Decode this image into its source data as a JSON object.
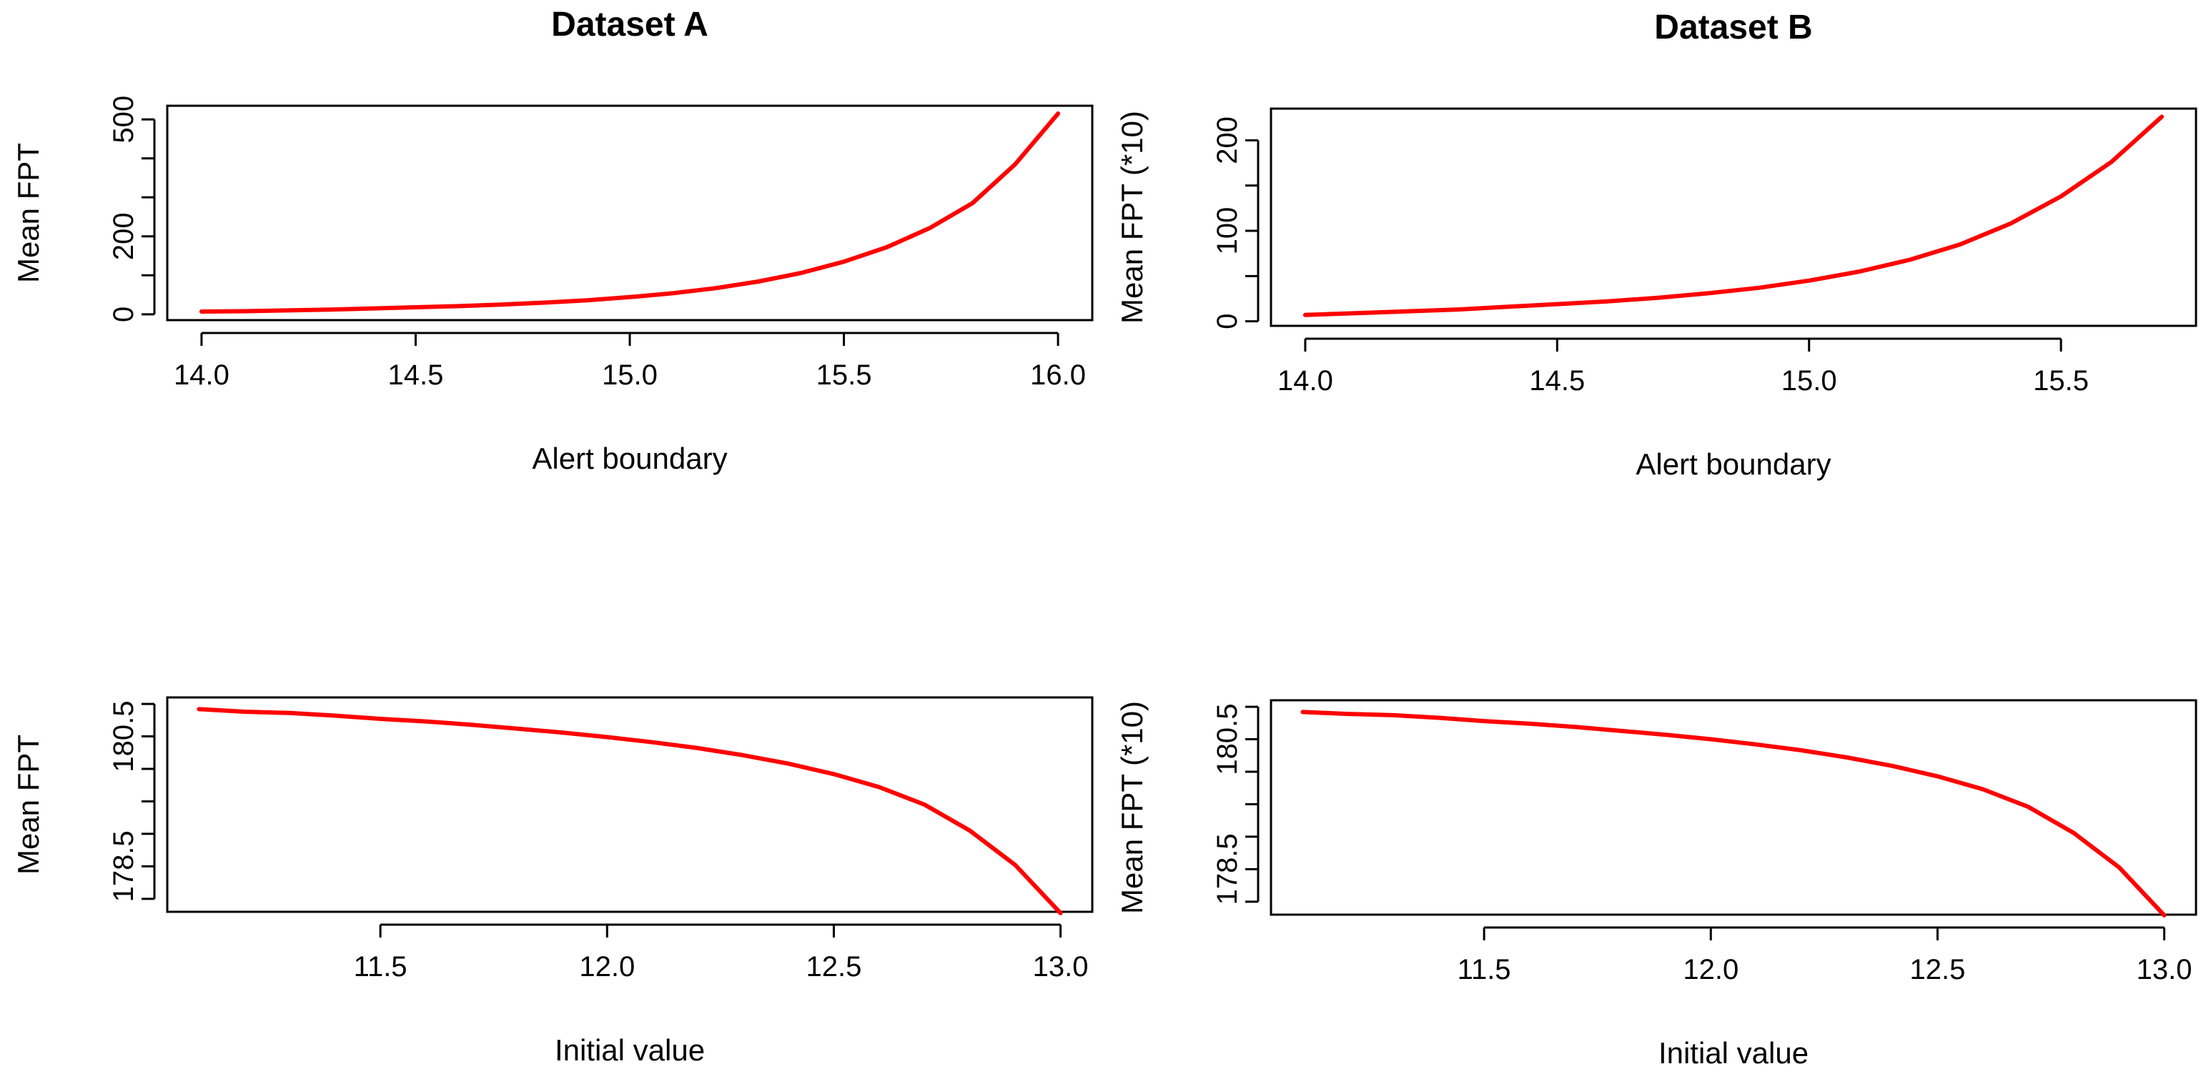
{
  "chart_data": [
    {
      "type": "line",
      "title": "Dataset A",
      "xlabel": "Alert boundary",
      "ylabel": "Mean FPT",
      "xlim": [
        13.92,
        16.08
      ],
      "ylim": [
        -15,
        535
      ],
      "xticks": [
        14.0,
        14.5,
        15.0,
        15.5,
        16.0
      ],
      "xtick_labels": [
        "14.0",
        "14.5",
        "15.0",
        "15.5",
        "16.0"
      ],
      "yticks": [
        0,
        100,
        200,
        300,
        400,
        500
      ],
      "ytick_labels": [
        "0",
        "",
        "200",
        "",
        "",
        "500"
      ],
      "series": [
        {
          "name": "Mean FPT",
          "color": "#ff0000",
          "x": [
            14.0,
            14.1,
            14.2,
            14.3,
            14.4,
            14.5,
            14.6,
            14.7,
            14.8,
            14.9,
            15.0,
            15.1,
            15.2,
            15.3,
            15.4,
            15.5,
            15.6,
            15.7,
            15.8,
            15.9,
            16.0
          ],
          "y": [
            7,
            8,
            10,
            12,
            15,
            18,
            21,
            25,
            30,
            36,
            44,
            54,
            67,
            84,
            106,
            135,
            172,
            221,
            285,
            385,
            515
          ]
        }
      ]
    },
    {
      "type": "line",
      "title": "Dataset B",
      "xlabel": "Alert boundary",
      "ylabel": "Mean FPT (*10)",
      "xlim": [
        13.932,
        15.768
      ],
      "ylim": [
        -5,
        235
      ],
      "xticks": [
        14.0,
        14.5,
        15.0,
        15.5
      ],
      "xtick_labels": [
        "14.0",
        "14.5",
        "15.0",
        "15.5"
      ],
      "yticks": [
        0,
        50,
        100,
        150,
        200
      ],
      "ytick_labels": [
        "0",
        "",
        "100",
        "",
        "200"
      ],
      "series": [
        {
          "name": "Mean FPT (*10)",
          "color": "#ff0000",
          "x": [
            14.0,
            14.1,
            14.2,
            14.3,
            14.4,
            14.5,
            14.6,
            14.7,
            14.8,
            14.9,
            15.0,
            15.1,
            15.2,
            15.3,
            15.4,
            15.5,
            15.6,
            15.7
          ],
          "y": [
            7,
            9,
            11,
            13,
            16,
            19,
            22,
            26,
            31,
            37,
            45,
            55,
            68,
            85,
            108,
            138,
            176,
            226
          ]
        }
      ]
    },
    {
      "type": "line",
      "title": "",
      "xlabel": "Initial value",
      "ylabel": "Mean FPT",
      "xlim": [
        11.03,
        13.07
      ],
      "ylim": [
        177.8,
        181.1
      ],
      "xticks": [
        11.5,
        12.0,
        12.5,
        13.0
      ],
      "xtick_labels": [
        "11.5",
        "12.0",
        "12.5",
        "13.0"
      ],
      "yticks": [
        178.0,
        178.5,
        179.0,
        179.5,
        180.0,
        180.5,
        181.0
      ],
      "ytick_labels": [
        "",
        "178.5",
        "",
        "",
        "",
        "180.5",
        ""
      ],
      "series": [
        {
          "name": "Mean FPT",
          "color": "#ff0000",
          "x": [
            11.1,
            11.2,
            11.3,
            11.4,
            11.5,
            11.6,
            11.7,
            11.8,
            11.9,
            12.0,
            12.1,
            12.2,
            12.3,
            12.4,
            12.5,
            12.6,
            12.7,
            12.8,
            12.9,
            13.0
          ],
          "y": [
            180.92,
            180.88,
            180.86,
            180.82,
            180.77,
            180.73,
            180.68,
            180.62,
            180.56,
            180.49,
            180.41,
            180.32,
            180.21,
            180.08,
            179.92,
            179.72,
            179.45,
            179.05,
            178.52,
            177.78
          ]
        }
      ]
    },
    {
      "type": "line",
      "title": "",
      "xlabel": "Initial value",
      "ylabel": "Mean FPT (*10)",
      "xlim": [
        11.03,
        13.07
      ],
      "ylim": [
        177.8,
        181.1
      ],
      "xticks": [
        11.5,
        12.0,
        12.5,
        13.0
      ],
      "xtick_labels": [
        "11.5",
        "12.0",
        "12.5",
        "13.0"
      ],
      "yticks": [
        178.0,
        178.5,
        179.0,
        179.5,
        180.0,
        180.5,
        181.0
      ],
      "ytick_labels": [
        "",
        "178.5",
        "",
        "",
        "",
        "180.5",
        ""
      ],
      "series": [
        {
          "name": "Mean FPT (*10)",
          "color": "#ff0000",
          "x": [
            11.1,
            11.2,
            11.3,
            11.4,
            11.5,
            11.6,
            11.7,
            11.8,
            11.9,
            12.0,
            12.1,
            12.2,
            12.3,
            12.4,
            12.5,
            12.6,
            12.7,
            12.8,
            12.9,
            13.0
          ],
          "y": [
            180.92,
            180.89,
            180.87,
            180.83,
            180.78,
            180.74,
            180.69,
            180.63,
            180.57,
            180.5,
            180.42,
            180.33,
            180.22,
            180.09,
            179.93,
            179.73,
            179.46,
            179.06,
            178.53,
            177.79
          ]
        }
      ]
    }
  ]
}
